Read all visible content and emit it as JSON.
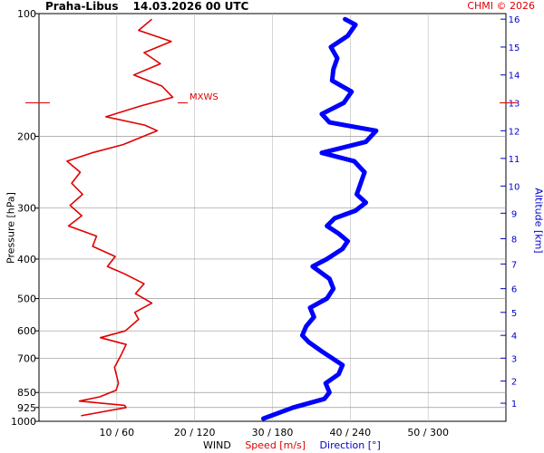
{
  "header": {
    "station": "Praha-Libus",
    "datetime": "14.03.2026 00 UTC",
    "credit": "CHMI © 2026"
  },
  "annotations": {
    "max_wind": "MXWS"
  },
  "colors": {
    "speed": "#e00000",
    "direction": "#0000ff",
    "altitude_axis": "#0000cc",
    "grid": "#bbbbbb"
  },
  "chart_data": {
    "type": "line",
    "ylabel_left": "Pressure [hPa]",
    "ylabel_right": "Altitude [km]",
    "legend": {
      "wind": "WIND",
      "speed": "Speed [m/s]",
      "direction": "Direction [°]"
    },
    "y_pressure_ticks": [
      100,
      200,
      300,
      400,
      500,
      600,
      700,
      850,
      925,
      1000
    ],
    "y_pressure_range": [
      1000,
      100
    ],
    "y_altitude_ticks": [
      1,
      2,
      3,
      4,
      5,
      6,
      7,
      8,
      9,
      10,
      11,
      12,
      13,
      14,
      15,
      16
    ],
    "x_ticks": [
      "10 / 60",
      "20 / 120",
      "30 / 180",
      "40 / 240",
      "50 / 300"
    ],
    "x_speed_range": [
      0,
      60
    ],
    "x_direction_range": [
      0,
      360
    ],
    "max_wind_altitude_km": 13,
    "series": [
      {
        "name": "Speed [m/s]",
        "unit": "m/s",
        "points": [
          [
            0.5,
            5.4
          ],
          [
            0.8,
            11.2
          ],
          [
            0.9,
            11.0
          ],
          [
            1.1,
            5.2
          ],
          [
            1.3,
            7.8
          ],
          [
            1.6,
            9.9
          ],
          [
            1.9,
            10.2
          ],
          [
            2.2,
            10.0
          ],
          [
            2.6,
            9.7
          ],
          [
            3.1,
            10.5
          ],
          [
            3.6,
            11.2
          ],
          [
            3.9,
            7.9
          ],
          [
            4.2,
            11.1
          ],
          [
            4.7,
            12.8
          ],
          [
            5.0,
            12.3
          ],
          [
            5.4,
            14.5
          ],
          [
            5.8,
            12.4
          ],
          [
            6.2,
            13.5
          ],
          [
            6.6,
            11.0
          ],
          [
            6.9,
            8.8
          ],
          [
            7.3,
            9.8
          ],
          [
            7.7,
            6.9
          ],
          [
            8.1,
            7.4
          ],
          [
            8.5,
            3.8
          ],
          [
            8.9,
            5.5
          ],
          [
            9.3,
            4.0
          ],
          [
            9.7,
            5.6
          ],
          [
            10.1,
            4.2
          ],
          [
            10.5,
            5.3
          ],
          [
            10.9,
            3.6
          ],
          [
            11.2,
            6.8
          ],
          [
            11.5,
            10.8
          ],
          [
            12.0,
            15.2
          ],
          [
            12.2,
            13.6
          ],
          [
            12.5,
            8.6
          ],
          [
            12.9,
            13.2
          ],
          [
            13.2,
            17.2
          ],
          [
            13.6,
            15.8
          ],
          [
            14.0,
            12.2
          ],
          [
            14.4,
            15.6
          ],
          [
            14.8,
            13.5
          ],
          [
            15.2,
            17.0
          ],
          [
            15.6,
            12.8
          ],
          [
            16.0,
            14.5
          ]
        ]
      },
      {
        "name": "Direction [°]",
        "unit": "°",
        "points": [
          [
            0.4,
            173
          ],
          [
            0.8,
            196
          ],
          [
            1.2,
            220
          ],
          [
            1.5,
            224
          ],
          [
            1.9,
            221
          ],
          [
            2.3,
            231
          ],
          [
            2.7,
            234
          ],
          [
            3.0,
            226
          ],
          [
            3.3,
            218
          ],
          [
            3.7,
            208
          ],
          [
            4.0,
            203
          ],
          [
            4.4,
            206
          ],
          [
            4.8,
            212
          ],
          [
            5.2,
            209
          ],
          [
            5.6,
            222
          ],
          [
            6.0,
            227
          ],
          [
            6.4,
            224
          ],
          [
            6.9,
            211
          ],
          [
            7.2,
            222
          ],
          [
            7.6,
            234
          ],
          [
            7.9,
            238
          ],
          [
            8.2,
            231
          ],
          [
            8.5,
            222
          ],
          [
            8.8,
            228
          ],
          [
            9.1,
            244
          ],
          [
            9.4,
            252
          ],
          [
            9.7,
            245
          ],
          [
            10.1,
            248
          ],
          [
            10.5,
            251
          ],
          [
            10.9,
            243
          ],
          [
            11.2,
            218
          ],
          [
            11.6,
            252
          ],
          [
            12.0,
            260
          ],
          [
            12.3,
            224
          ],
          [
            12.6,
            218
          ],
          [
            13.0,
            235
          ],
          [
            13.4,
            241
          ],
          [
            13.8,
            226
          ],
          [
            14.2,
            227
          ],
          [
            14.6,
            230
          ],
          [
            15.0,
            225
          ],
          [
            15.4,
            238
          ],
          [
            15.8,
            244
          ],
          [
            16.0,
            236
          ]
        ]
      }
    ]
  }
}
